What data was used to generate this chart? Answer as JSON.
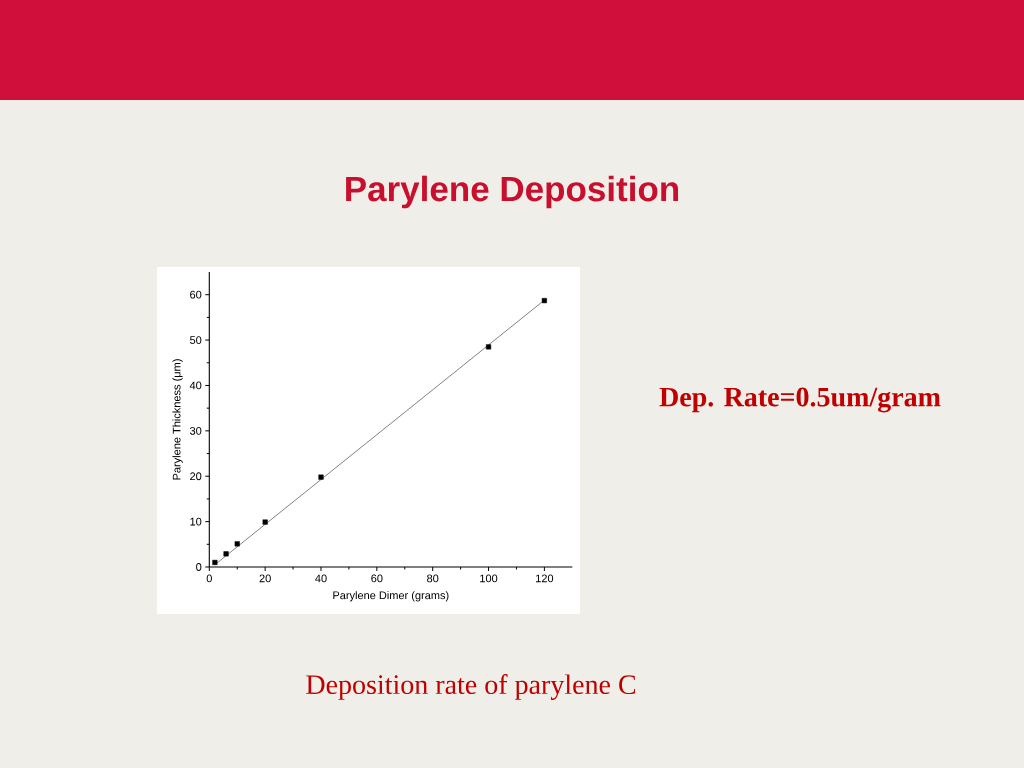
{
  "chart_data": {
    "type": "scatter",
    "title": "Parylene Deposition",
    "xlabel": "Parylene Dimer (grams)",
    "ylabel": "Parylene Thickness (μm)",
    "x": [
      2,
      6,
      10,
      20,
      40,
      100,
      120
    ],
    "series": [
      {
        "type": "line",
        "x": [
          2,
          120
        ],
        "values": [
          0.5,
          58.8
        ],
        "color": "#000000",
        "marker": "none"
      },
      {
        "values": [
          1.0,
          2.9,
          5.1,
          9.9,
          19.8,
          48.5,
          58.7
        ],
        "color": "#000000",
        "marker": "square"
      }
    ],
    "xlim": [
      0,
      130
    ],
    "ylim": [
      0,
      65
    ],
    "xticks": [
      0,
      20,
      40,
      60,
      80,
      100,
      120
    ],
    "yticks": [
      0,
      10,
      20,
      30,
      40,
      50,
      60
    ],
    "grid": false,
    "annotations": [
      "Dep. Rate=0.5um/gram",
      "Deposition rate of parylene C"
    ]
  }
}
